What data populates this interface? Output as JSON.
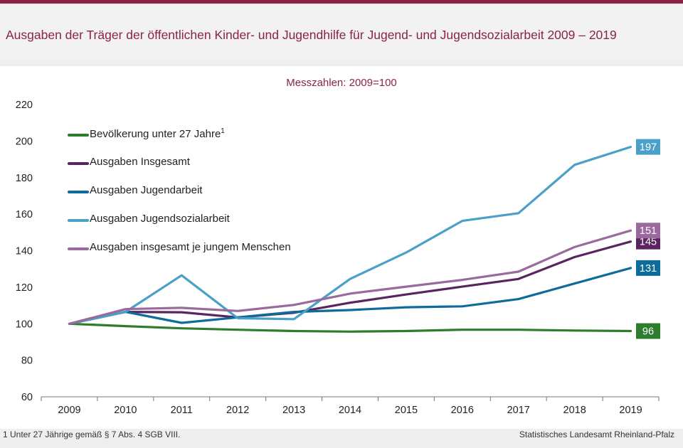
{
  "header": {
    "title": "Ausgaben der Träger der öffentlichen Kinder- und Jugendhilfe  für Jugend- und Jugendsozialarbeit 2009 – 2019",
    "subtitle": "Messzahlen:  2009=100"
  },
  "footer": {
    "footnote": "1 Unter 27 Jährige  gemäß  § 7 Abs. 4 SGB VIII.",
    "source": "Statistisches Landesamt  Rheinland-Pfalz"
  },
  "colors": {
    "accent": "#8b2346"
  },
  "chart_data": {
    "type": "line",
    "title": "Ausgaben der Träger der öffentlichen Kinder- und Jugendhilfe  für Jugend- und Jugendsozialarbeit 2009 – 2019",
    "subtitle": "Messzahlen:  2009=100",
    "xlabel": "",
    "ylabel": "",
    "ylim": [
      60,
      220
    ],
    "yticks": [
      60,
      80,
      100,
      120,
      140,
      160,
      180,
      200,
      220
    ],
    "grid": false,
    "legend_position": "top-left",
    "categories": [
      "2009",
      "2010",
      "2011",
      "2012",
      "2013",
      "2014",
      "2015",
      "2016",
      "2017",
      "2018",
      "2019"
    ],
    "series": [
      {
        "name": "Bevölkerung unter 27 Jahre",
        "footnote_mark": "1",
        "color": "#2d7d2d",
        "end_label": "96",
        "values": [
          100,
          98.7,
          97.5,
          96.7,
          96.0,
          95.7,
          96.0,
          96.7,
          96.7,
          96.3,
          96.0
        ]
      },
      {
        "name": "Ausgaben Insgesamt",
        "color": "#5a2461",
        "end_label": "145",
        "values": [
          100,
          106.5,
          106.3,
          103.5,
          106.0,
          111.5,
          116.0,
          120.3,
          124.5,
          136.5,
          145.0
        ]
      },
      {
        "name": "Ausgaben Jugendarbeit",
        "color": "#0d6c9c",
        "end_label": "131",
        "values": [
          100,
          106.5,
          100.5,
          103.5,
          106.5,
          107.5,
          109.0,
          109.5,
          113.5,
          122.0,
          130.5
        ]
      },
      {
        "name": "Ausgaben Jugendsozialarbeit",
        "color": "#4ba0c8",
        "end_label": "197",
        "values": [
          100,
          106.5,
          126.5,
          103.0,
          102.5,
          124.5,
          139.0,
          156.3,
          160.5,
          187.0,
          196.8
        ]
      },
      {
        "name": "Ausgaben insgesamt je jungem Menschen",
        "color": "#9a6a9e",
        "end_label": "151",
        "values": [
          100,
          108.0,
          108.7,
          107.0,
          110.3,
          116.5,
          120.3,
          124.0,
          128.5,
          142.0,
          151.0
        ]
      }
    ]
  }
}
